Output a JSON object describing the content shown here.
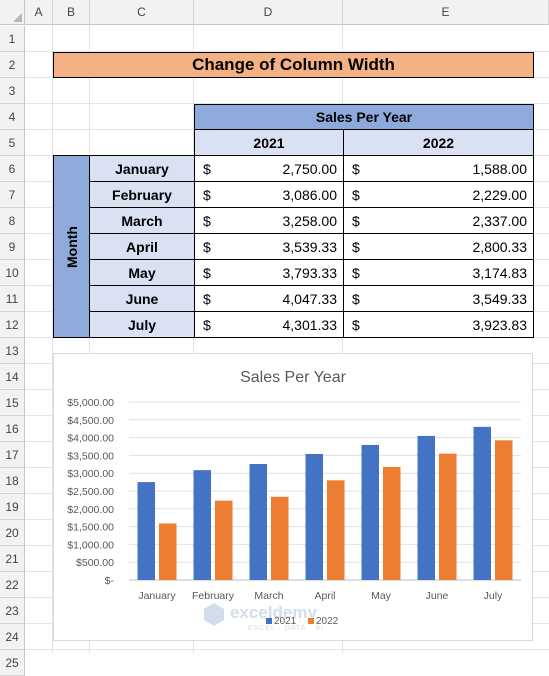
{
  "sheet": {
    "columns": [
      "A",
      "B",
      "C",
      "D",
      "E"
    ],
    "rows": [
      "1",
      "2",
      "3",
      "4",
      "5",
      "6",
      "7",
      "8",
      "9",
      "10",
      "11",
      "12",
      "13",
      "14",
      "15",
      "16",
      "17",
      "18",
      "19",
      "20",
      "21",
      "22",
      "23",
      "24",
      "25"
    ]
  },
  "table": {
    "title": "Change of Column Width",
    "group_header": "Sales Per Year",
    "year_headers": [
      "2021",
      "2022"
    ],
    "row_axis_label": "Month",
    "currency_symbol": "$",
    "rows": [
      {
        "month": "January",
        "v2021": "2,750.00",
        "v2022": "1,588.00"
      },
      {
        "month": "February",
        "v2021": "3,086.00",
        "v2022": "2,229.00"
      },
      {
        "month": "March",
        "v2021": "3,258.00",
        "v2022": "2,337.00"
      },
      {
        "month": "April",
        "v2021": "3,539.33",
        "v2022": "2,800.33"
      },
      {
        "month": "May",
        "v2021": "3,793.33",
        "v2022": "3,174.83"
      },
      {
        "month": "June",
        "v2021": "4,047.33",
        "v2022": "3,549.33"
      },
      {
        "month": "July",
        "v2021": "4,301.33",
        "v2022": "3,923.83"
      }
    ]
  },
  "chart_data": {
    "type": "bar",
    "title": "Sales Per Year",
    "categories": [
      "January",
      "February",
      "March",
      "April",
      "May",
      "June",
      "July"
    ],
    "series": [
      {
        "name": "2021",
        "color": "#4472c4",
        "values": [
          2750.0,
          3086.0,
          3258.0,
          3539.33,
          3793.33,
          4047.33,
          4301.33
        ]
      },
      {
        "name": "2022",
        "color": "#ed7d31",
        "values": [
          1588.0,
          2229.0,
          2337.0,
          2800.33,
          3174.83,
          3549.33,
          3923.83
        ]
      }
    ],
    "ylim": [
      0,
      5000
    ],
    "yticks": [
      "$-",
      "$500.00",
      "$1,000.00",
      "$1,500.00",
      "$2,000.00",
      "$2,500.00",
      "$3,000.00",
      "$3,500.00",
      "$4,000.00",
      "$4,500.00",
      "$5,000.00"
    ],
    "grid": true,
    "legend": "bottom"
  },
  "watermark": {
    "brand": "exceldemy",
    "tagline": "EXCEL · DATA · BI"
  }
}
